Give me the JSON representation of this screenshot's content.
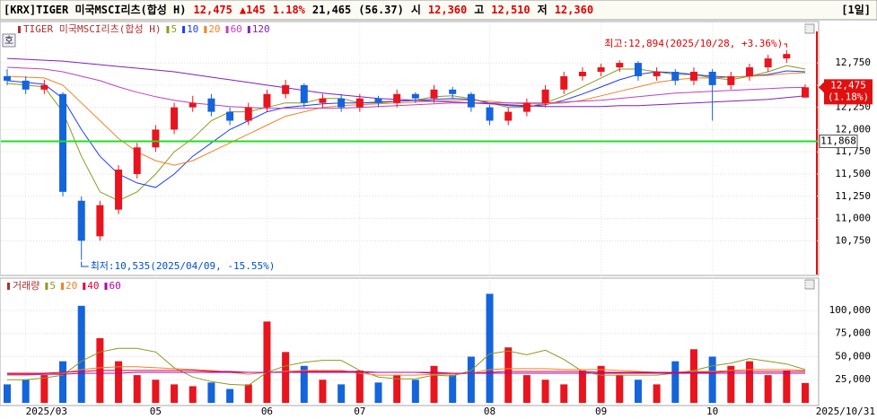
{
  "header": {
    "items": [
      {
        "text": "[KRX]TIGER 미국MSCI리츠(합성 H)",
        "color": "#000000"
      },
      {
        "text": "12,475",
        "color": "#e00000"
      },
      {
        "text": "▲145",
        "color": "#e00000"
      },
      {
        "text": "1.18%",
        "color": "#e00000"
      },
      {
        "text": "21,465",
        "color": "#000000"
      },
      {
        "text": "(56.37)",
        "color": "#000000"
      },
      {
        "text": "시",
        "color": "#000000"
      },
      {
        "text": "12,360",
        "color": "#e00000"
      },
      {
        "text": "고",
        "color": "#000000"
      },
      {
        "text": "12,510",
        "color": "#e00000"
      },
      {
        "text": "저",
        "color": "#000000"
      },
      {
        "text": "12,360",
        "color": "#e00000"
      }
    ],
    "period": "[1일]"
  },
  "side_button": "호",
  "chart_data": [
    {
      "type": "candlestick",
      "name": "TIGER 미국MSCI리츠(합성 H)",
      "categories": [
        null,
        "2025/03",
        null,
        null,
        null,
        null,
        null,
        null,
        "05",
        null,
        null,
        null,
        null,
        null,
        "06",
        null,
        null,
        null,
        null,
        "07",
        null,
        null,
        null,
        null,
        null,
        null,
        "08",
        null,
        null,
        null,
        null,
        null,
        "09",
        null,
        null,
        null,
        null,
        null,
        "10",
        null,
        null,
        null,
        null,
        "2025/10/31"
      ],
      "open": [
        12600,
        12550,
        12450,
        12400,
        11200,
        10800,
        11100,
        11500,
        11800,
        12000,
        12250,
        12350,
        12200,
        12100,
        12250,
        12400,
        12500,
        12300,
        12350,
        12250,
        12350,
        12300,
        12400,
        12350,
        12450,
        12400,
        12250,
        12100,
        12200,
        12300,
        12450,
        12600,
        12650,
        12700,
        12750,
        12600,
        12650,
        12550,
        12650,
        12500,
        12600,
        12700,
        12800,
        12360
      ],
      "high": [
        12680,
        12600,
        12560,
        12420,
        11250,
        11200,
        11600,
        11850,
        12050,
        12300,
        12380,
        12400,
        12250,
        12300,
        12450,
        12560,
        12520,
        12400,
        12400,
        12400,
        12380,
        12450,
        12420,
        12500,
        12480,
        12420,
        12280,
        12250,
        12350,
        12500,
        12650,
        12700,
        12740,
        12780,
        12770,
        12700,
        12680,
        12700,
        12680,
        12650,
        12740,
        12840,
        12894,
        12510
      ],
      "low": [
        12500,
        12400,
        12400,
        11250,
        10535,
        10750,
        11050,
        11450,
        11750,
        11950,
        12200,
        12150,
        12050,
        12050,
        12200,
        12350,
        12250,
        12250,
        12200,
        12200,
        12250,
        12250,
        12300,
        12300,
        12350,
        12200,
        12050,
        12050,
        12150,
        12250,
        12400,
        12550,
        12600,
        12650,
        12550,
        12550,
        12500,
        12500,
        12100,
        12450,
        12550,
        12650,
        12750,
        12360
      ],
      "close": [
        12550,
        12450,
        12500,
        11300,
        10750,
        11150,
        11550,
        11800,
        12000,
        12250,
        12300,
        12200,
        12100,
        12250,
        12400,
        12500,
        12300,
        12350,
        12250,
        12350,
        12300,
        12400,
        12350,
        12450,
        12400,
        12250,
        12100,
        12200,
        12300,
        12450,
        12600,
        12650,
        12700,
        12750,
        12600,
        12650,
        12550,
        12650,
        12500,
        12600,
        12700,
        12800,
        12850,
        12475
      ],
      "up_color": "#e8141e",
      "down_color": "#1464dc",
      "series": [
        {
          "name": "5",
          "color": "#8c9a1e",
          "values": [
            12520,
            12500,
            12480,
            12200,
            11700,
            11300,
            11200,
            11300,
            11500,
            11750,
            11900,
            12100,
            12200,
            12200,
            12250,
            12300,
            12300,
            12350,
            12350,
            12300,
            12300,
            12320,
            12330,
            12370,
            12380,
            12350,
            12300,
            12250,
            12250,
            12300,
            12380,
            12480,
            12580,
            12680,
            12680,
            12650,
            12620,
            12620,
            12580,
            12560,
            12600,
            12650,
            12720,
            12680
          ]
        },
        {
          "name": "10",
          "color": "#1e3cff",
          "values": [
            12550,
            12530,
            12510,
            12350,
            12000,
            11700,
            11500,
            11400,
            11350,
            11500,
            11700,
            11850,
            12000,
            12100,
            12200,
            12250,
            12270,
            12290,
            12300,
            12300,
            12310,
            12320,
            12330,
            12340,
            12350,
            12340,
            12300,
            12270,
            12260,
            12280,
            12330,
            12400,
            12480,
            12560,
            12620,
            12650,
            12640,
            12620,
            12600,
            12590,
            12600,
            12620,
            12660,
            12650
          ]
        },
        {
          "name": "20",
          "color": "#f08228",
          "values": [
            12600,
            12590,
            12580,
            12500,
            12300,
            12100,
            11900,
            11750,
            11650,
            11600,
            11650,
            11750,
            11850,
            11950,
            12050,
            12150,
            12200,
            12250,
            12270,
            12280,
            12290,
            12300,
            12310,
            12320,
            12330,
            12330,
            12320,
            12300,
            12290,
            12290,
            12300,
            12330,
            12380,
            12430,
            12480,
            12530,
            12560,
            12580,
            12580,
            12590,
            12600,
            12610,
            12630,
            12640
          ]
        },
        {
          "name": "60",
          "color": "#c040c0",
          "values": [
            12700,
            12690,
            12680,
            12650,
            12600,
            12550,
            12480,
            12420,
            12370,
            12330,
            12300,
            12280,
            12260,
            12250,
            12240,
            12240,
            12240,
            12240,
            12240,
            12250,
            12260,
            12270,
            12280,
            12290,
            12300,
            12300,
            12300,
            12300,
            12300,
            12300,
            12310,
            12320,
            12330,
            12350,
            12370,
            12390,
            12410,
            12420,
            12430,
            12440,
            12450,
            12460,
            12470,
            12475
          ]
        },
        {
          "name": "120",
          "color": "#8020c0",
          "values": [
            12800,
            12790,
            12780,
            12770,
            12750,
            12730,
            12710,
            12690,
            12670,
            12650,
            12620,
            12590,
            12560,
            12530,
            12500,
            12470,
            12440,
            12410,
            12390,
            12370,
            12350,
            12340,
            12330,
            12320,
            12310,
            12300,
            12290,
            12280,
            12270,
            12260,
            12260,
            12260,
            12260,
            12270,
            12270,
            12280,
            12290,
            12300,
            12310,
            12320,
            12330,
            12340,
            12360,
            12380
          ]
        }
      ],
      "ylim": [
        10370,
        13215
      ],
      "yticks": [
        {
          "value": 10750,
          "label": "10,750"
        },
        {
          "value": 11000,
          "label": "11,000"
        },
        {
          "value": 11250,
          "label": "11,250"
        },
        {
          "value": 11500,
          "label": "11,500"
        },
        {
          "value": 11750,
          "label": "11,750"
        },
        {
          "value": 12000,
          "label": "12,000"
        },
        {
          "value": 12250,
          "label": "12,250"
        },
        {
          "value": 12500,
          "label": "12,500"
        },
        {
          "value": 12750,
          "label": "12,750"
        }
      ],
      "current": {
        "value": 12475,
        "label": "12,475",
        "change": "(1.18%)"
      },
      "level_line": {
        "value": 11868,
        "label": "11,868",
        "color": "#22dd22"
      },
      "annotations": [
        {
          "text": "최고:12,894(2025/10/28, +3.36%)",
          "color": "#e00000"
        },
        {
          "text": "최저:10,535(2025/04/09, -15.55%)",
          "color": "#0050c8"
        }
      ]
    },
    {
      "type": "bar",
      "name": "거래량",
      "values": [
        20000,
        25000,
        30000,
        45000,
        105000,
        70000,
        45000,
        30000,
        25000,
        20000,
        18000,
        22000,
        15000,
        20000,
        88000,
        55000,
        40000,
        25000,
        20000,
        35000,
        22000,
        30000,
        25000,
        40000,
        30000,
        50000,
        118000,
        60000,
        30000,
        25000,
        20000,
        35000,
        40000,
        30000,
        25000,
        20000,
        45000,
        58000,
        50000,
        40000,
        45000,
        30000,
        35000,
        21465
      ],
      "series": [
        {
          "name": "5",
          "color": "#8c9a1e",
          "values": [
            25000,
            25000,
            27000,
            30000,
            45000,
            55000,
            59000,
            59000,
            55000,
            38000,
            28000,
            23000,
            20000,
            19000,
            33000,
            40000,
            44000,
            46000,
            46000,
            35000,
            28000,
            26000,
            26000,
            30000,
            29000,
            35000,
            53000,
            56000,
            52000,
            57000,
            47000,
            34000,
            30000,
            30000,
            30000,
            30000,
            32000,
            35000,
            40000,
            43000,
            48000,
            45000,
            42000,
            36000
          ]
        },
        {
          "name": "20",
          "color": "#f08228",
          "values": [
            30000,
            30000,
            31000,
            32000,
            36000,
            38000,
            39000,
            39000,
            38000,
            37000,
            36000,
            35000,
            33000,
            31000,
            33000,
            34000,
            35000,
            35000,
            35000,
            32000,
            30000,
            30000,
            30000,
            31000,
            31000,
            32000,
            36000,
            37000,
            37000,
            37000,
            36000,
            36000,
            36000,
            35000,
            34000,
            33000,
            33000,
            34000,
            34000,
            35000,
            36000,
            36000,
            36000,
            35000
          ]
        },
        {
          "name": "40",
          "color": "#e0003c",
          "values": [
            32000,
            32000,
            32000,
            33000,
            34000,
            35000,
            35000,
            35000,
            35000,
            35000,
            35000,
            34000,
            34000,
            33000,
            33000,
            33000,
            34000,
            34000,
            34000,
            34000,
            33000,
            33000,
            33000,
            32000,
            32000,
            32000,
            33000,
            34000,
            34000,
            34000,
            34000,
            34000,
            33000,
            33000,
            33000,
            33000,
            33000,
            33000,
            33000,
            34000,
            34000,
            34000,
            34000,
            34000
          ]
        },
        {
          "name": "60",
          "color": "#b000b0",
          "values": [
            31000,
            31000,
            31000,
            31000,
            32000,
            32000,
            32000,
            33000,
            33000,
            33000,
            33000,
            33000,
            33000,
            33000,
            33000,
            33000,
            33000,
            33000,
            33000,
            33000,
            33000,
            33000,
            33000,
            33000,
            32000,
            32000,
            32000,
            32000,
            32000,
            32000,
            32000,
            32000,
            32000,
            32000,
            32000,
            32000,
            32000,
            32000,
            32000,
            32000,
            32000,
            32000,
            32000,
            32000
          ]
        }
      ],
      "ylim": [
        0,
        133000
      ],
      "yticks": [
        {
          "value": 25000,
          "label": "25,000"
        },
        {
          "value": 50000,
          "label": "50,000"
        },
        {
          "value": 75000,
          "label": "75,000"
        },
        {
          "value": 100000,
          "label": "100,000"
        }
      ]
    }
  ]
}
